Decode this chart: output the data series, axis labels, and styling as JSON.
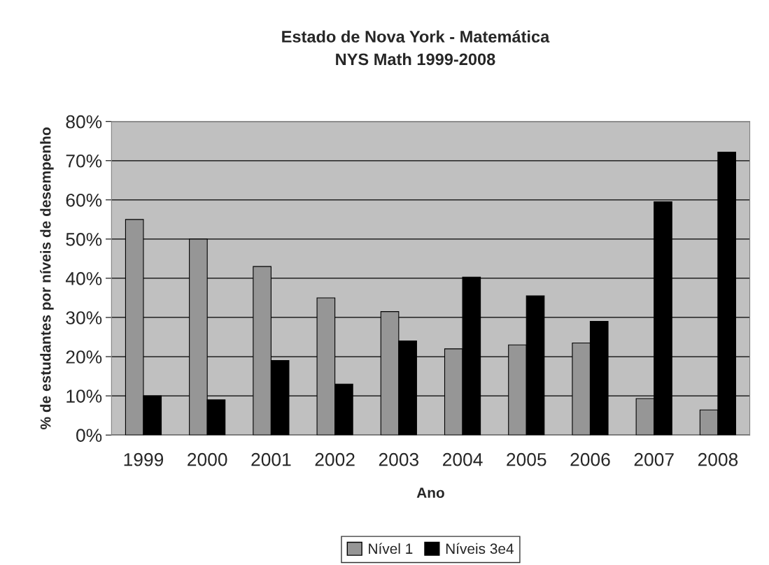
{
  "chart_data": {
    "type": "bar",
    "title": "Estado de Nova York - Matemática",
    "subtitle": "NYS Math 1999-2008",
    "xlabel": "Ano",
    "ylabel": "% de estudantes por níveis de desempenho",
    "categories": [
      "1999",
      "2000",
      "2001",
      "2002",
      "2003",
      "2004",
      "2005",
      "2006",
      "2007",
      "2008"
    ],
    "series": [
      {
        "name": "Nível 1",
        "color": "#969696",
        "values": [
          55,
          50,
          43,
          35,
          31.5,
          22,
          23,
          23.5,
          9.3,
          6.4
        ]
      },
      {
        "name": "Níveis 3e4",
        "color": "#000000",
        "values": [
          10,
          9,
          19,
          13,
          24,
          40.3,
          35.5,
          29,
          59.5,
          72.2
        ]
      }
    ],
    "ylim": [
      0,
      80
    ],
    "yticks": [
      {
        "value": 0,
        "label": "0%"
      },
      {
        "value": 10,
        "label": "10%"
      },
      {
        "value": 20,
        "label": "20%"
      },
      {
        "value": 30,
        "label": "30%"
      },
      {
        "value": 40,
        "label": "40%"
      },
      {
        "value": 50,
        "label": "50%"
      },
      {
        "value": 60,
        "label": "60%"
      },
      {
        "value": 70,
        "label": "70%"
      },
      {
        "value": 80,
        "label": "80%"
      }
    ],
    "grid": "y",
    "legend": "bottom"
  }
}
